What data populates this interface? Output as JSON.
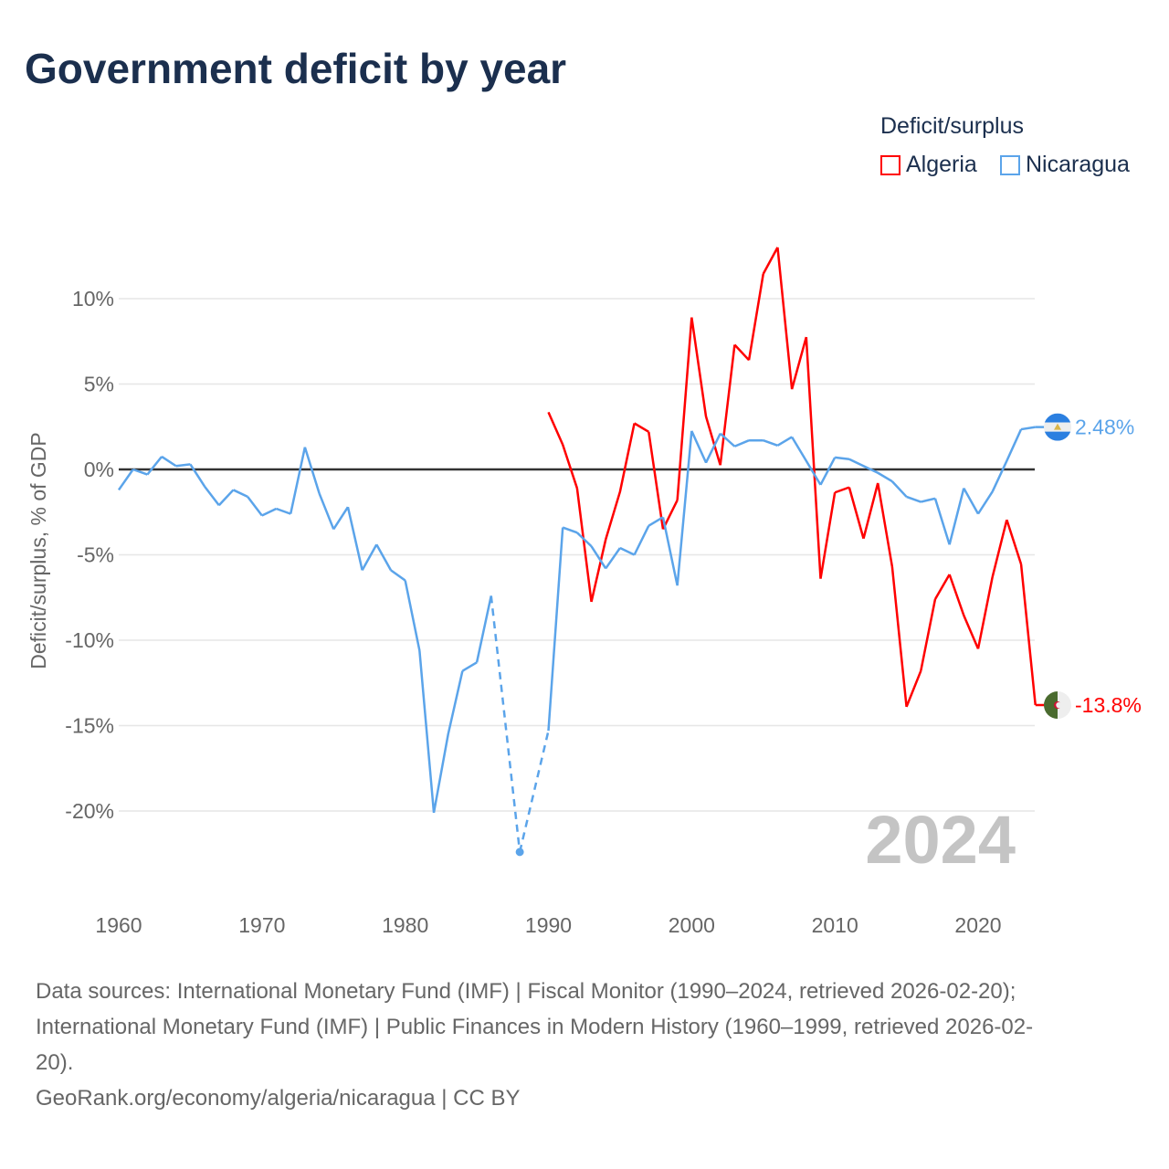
{
  "title": "Government deficit by year",
  "legend": {
    "title": "Deficit/surplus",
    "items": [
      {
        "name": "Algeria",
        "color": "#ff0000"
      },
      {
        "name": "Nicaragua",
        "color": "#5ba4ea"
      }
    ]
  },
  "chart_data": {
    "type": "line",
    "title": "Government deficit by year",
    "ylabel": "Deficit/surplus, % of GDP",
    "xlim": [
      1960,
      2024
    ],
    "ylim": [
      -24,
      14
    ],
    "xticks": [
      "1960",
      "1970",
      "1980",
      "1990",
      "2000",
      "2010",
      "2020"
    ],
    "yticks": [
      {
        "v": 10,
        "label": "10%"
      },
      {
        "v": 5,
        "label": "5%"
      },
      {
        "v": 0,
        "label": "0%"
      },
      {
        "v": -5,
        "label": "-5%"
      },
      {
        "v": -10,
        "label": "-10%"
      },
      {
        "v": -15,
        "label": "-15%"
      },
      {
        "v": -20,
        "label": "-20%"
      }
    ],
    "year_watermark": "2024",
    "series": [
      {
        "name": "Algeria",
        "color": "#ff0000",
        "end_label": "-13.8%",
        "start": 1990,
        "values": [
          3.35,
          1.45,
          -1.1,
          -7.75,
          -4.1,
          -1.3,
          2.7,
          2.2,
          -3.5,
          -1.8,
          8.9,
          3.1,
          0.25,
          7.3,
          6.4,
          11.45,
          13.0,
          4.7,
          7.75,
          -6.4,
          -1.35,
          -1.05,
          -4.05,
          -0.8,
          -5.7,
          -13.9,
          -11.8,
          -7.6,
          -6.15,
          -8.55,
          -10.5,
          -6.3,
          -2.95,
          -5.55,
          -13.8
        ]
      },
      {
        "name": "Nicaragua",
        "color": "#5ba4ea",
        "end_label": "2.48%",
        "start": 1960,
        "values": [
          -1.2,
          0,
          -0.3,
          0.75,
          0.2,
          0.3,
          -1.0,
          -2.1,
          -1.2,
          -1.6,
          -2.7,
          -2.3,
          -2.6,
          1.3,
          -1.4,
          -3.5,
          -2.2,
          -5.9,
          -4.4,
          -5.9,
          -6.5,
          -10.6,
          -20.1,
          -15.5,
          -11.8,
          -11.3,
          -7.4,
          null,
          -22.4,
          null,
          -15.3,
          -3.4,
          -3.7,
          -4.5,
          -5.8,
          -4.6,
          -5.0,
          -3.3,
          -2.8,
          -6.8,
          2.25,
          0.4,
          2.1,
          1.35,
          1.7,
          1.7,
          1.4,
          1.9,
          0.5,
          -0.9,
          0.7,
          0.6,
          0.2,
          -0.2,
          -0.7,
          -1.6,
          -1.9,
          -1.7,
          -4.4,
          -1.1,
          -2.6,
          -1.3,
          0.5,
          2.35,
          2.48
        ]
      }
    ]
  },
  "sources": {
    "line1": "Data sources: International Monetary Fund (IMF) | Fiscal Monitor (1990–2024, retrieved 2026-02-20);",
    "line2": "International Monetary Fund (IMF) | Public Finances in Modern History (1960–1999, retrieved 2026-02-",
    "line3": "20).",
    "line4": "GeoRank.org/economy/algeria/nicaragua | CC BY"
  }
}
